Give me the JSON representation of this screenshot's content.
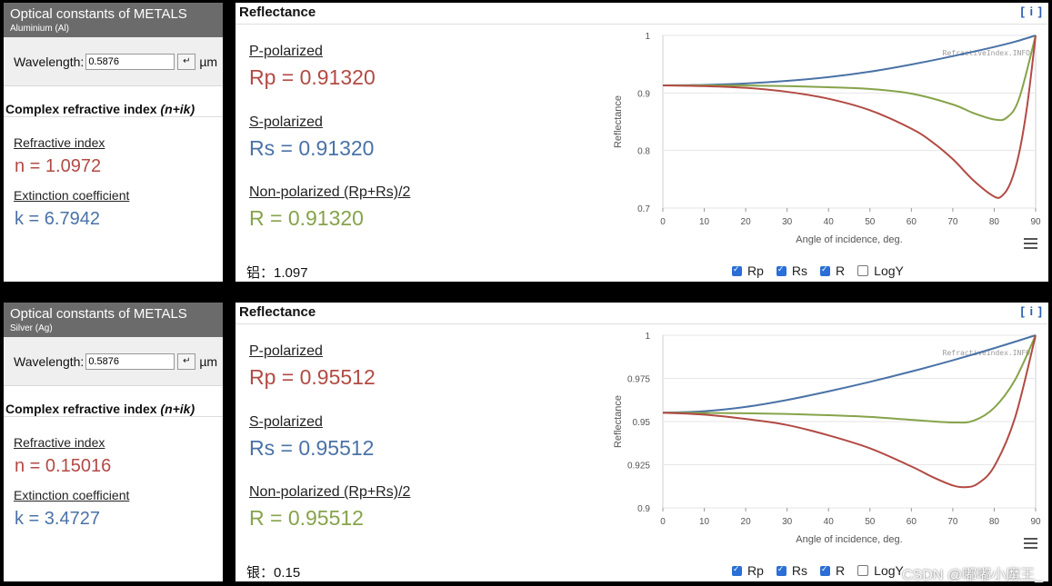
{
  "panels": [
    {
      "left": {
        "title": "Optical constants of METALS",
        "subtitle": "Aluminium (Al)",
        "wavelength_label": "Wavelength:",
        "wavelength_value": "0.5876",
        "enter_symbol": "↵",
        "unit": "µm",
        "section_title": "Complex refractive index",
        "section_title_expr": "(n+ik)",
        "n_label": "Refractive index",
        "n_value": "n = 1.0972",
        "k_label": "Extinction coefficient",
        "k_value": "k = 6.7942"
      },
      "right": {
        "title": "Reflectance",
        "info": "[ i ]",
        "p_label": "P-polarized",
        "p_value": "Rp = 0.91320",
        "s_label": "S-polarized",
        "s_value": "Rs = 0.91320",
        "n_label": "Non-polarized (Rp+Rs)/2",
        "n_value": "R = 0.91320",
        "note": "铝：1.097",
        "legend": [
          "Rp",
          "Rs",
          "R",
          "LogY"
        ]
      },
      "chart_data": {
        "type": "line",
        "xlabel": "Angle of incidence, deg.",
        "ylabel": "Reflectance",
        "watermark": "RefractiveIndex.INFO",
        "xlim": [
          0,
          90
        ],
        "ylim": [
          0.7,
          1
        ],
        "xticks": [
          0,
          10,
          20,
          30,
          40,
          50,
          60,
          70,
          80,
          90
        ],
        "yticks": [
          0.7,
          0.8,
          0.9,
          1
        ],
        "ytick_labels": [
          "0.7",
          "0.8",
          "0.9",
          "1"
        ],
        "series": [
          {
            "name": "Rs",
            "color": "#4a72a6",
            "x": [
              0,
              10,
              20,
              30,
              40,
              50,
              60,
              70,
              80,
              85,
              90
            ],
            "y": [
              0.9132,
              0.914,
              0.9165,
              0.921,
              0.9275,
              0.937,
              0.9495,
              0.964,
              0.98,
              0.989,
              1.0
            ]
          },
          {
            "name": "R",
            "color": "#86a34a",
            "x": [
              0,
              10,
              20,
              30,
              40,
              50,
              60,
              70,
              75,
              80,
              83,
              86,
              90
            ],
            "y": [
              0.9132,
              0.9132,
              0.913,
              0.912,
              0.91,
              0.907,
              0.899,
              0.88,
              0.865,
              0.854,
              0.857,
              0.89,
              1.0
            ]
          },
          {
            "name": "Rp",
            "color": "#b24a44",
            "x": [
              0,
              10,
              20,
              30,
              40,
              50,
              60,
              65,
              70,
              75,
              80,
              82,
              84,
              86,
              88,
              90
            ],
            "y": [
              0.9132,
              0.912,
              0.909,
              0.902,
              0.89,
              0.87,
              0.838,
              0.815,
              0.785,
              0.748,
              0.72,
              0.722,
              0.745,
              0.795,
              0.88,
              1.0
            ]
          }
        ]
      }
    },
    {
      "left": {
        "title": "Optical constants of METALS",
        "subtitle": "Silver (Ag)",
        "wavelength_label": "Wavelength:",
        "wavelength_value": "0.5876",
        "enter_symbol": "↵",
        "unit": "µm",
        "section_title": "Complex refractive index",
        "section_title_expr": "(n+ik)",
        "n_label": "Refractive index",
        "n_value": "n = 0.15016",
        "k_label": "Extinction coefficient",
        "k_value": "k = 3.4727"
      },
      "right": {
        "title": "Reflectance",
        "info": "[ i ]",
        "p_label": "P-polarized",
        "p_value": "Rp = 0.95512",
        "s_label": "S-polarized",
        "s_value": "Rs = 0.95512",
        "n_label": "Non-polarized (Rp+Rs)/2",
        "n_value": "R = 0.95512",
        "note": "银：0.15",
        "legend": [
          "Rp",
          "Rs",
          "R",
          "LogY"
        ]
      },
      "chart_data": {
        "type": "line",
        "xlabel": "Angle of incidence, deg.",
        "ylabel": "Reflectance",
        "watermark": "RefractiveIndex.INFO",
        "xlim": [
          0,
          90
        ],
        "ylim": [
          0.9,
          1
        ],
        "xticks": [
          0,
          10,
          20,
          30,
          40,
          50,
          60,
          70,
          80,
          90
        ],
        "yticks": [
          0.9,
          0.925,
          0.95,
          0.975,
          1
        ],
        "ytick_labels": [
          "0.9",
          "0.925",
          "0.95",
          "0.975",
          "1"
        ],
        "series": [
          {
            "name": "Rs",
            "color": "#4a72a6",
            "x": [
              0,
              10,
              20,
              30,
              40,
              50,
              60,
              70,
              80,
              90
            ],
            "y": [
              0.9551,
              0.956,
              0.9585,
              0.9625,
              0.9675,
              0.973,
              0.979,
              0.9855,
              0.9925,
              1.0
            ]
          },
          {
            "name": "R",
            "color": "#86a34a",
            "x": [
              0,
              10,
              20,
              30,
              40,
              50,
              60,
              70,
              75,
              80,
              85,
              90
            ],
            "y": [
              0.9551,
              0.955,
              0.9548,
              0.9544,
              0.9537,
              0.9527,
              0.951,
              0.9495,
              0.9505,
              0.958,
              0.974,
              1.0
            ]
          },
          {
            "name": "Rp",
            "color": "#b24a44",
            "x": [
              0,
              10,
              20,
              30,
              40,
              50,
              60,
              65,
              70,
              73,
              76,
              80,
              85,
              90
            ],
            "y": [
              0.9551,
              0.954,
              0.9515,
              0.948,
              0.942,
              0.9345,
              0.924,
              0.918,
              0.913,
              0.912,
              0.914,
              0.924,
              0.952,
              1.0
            ]
          }
        ]
      }
    }
  ],
  "watermark_text": "CSDN @嘟嘟小魔王_"
}
